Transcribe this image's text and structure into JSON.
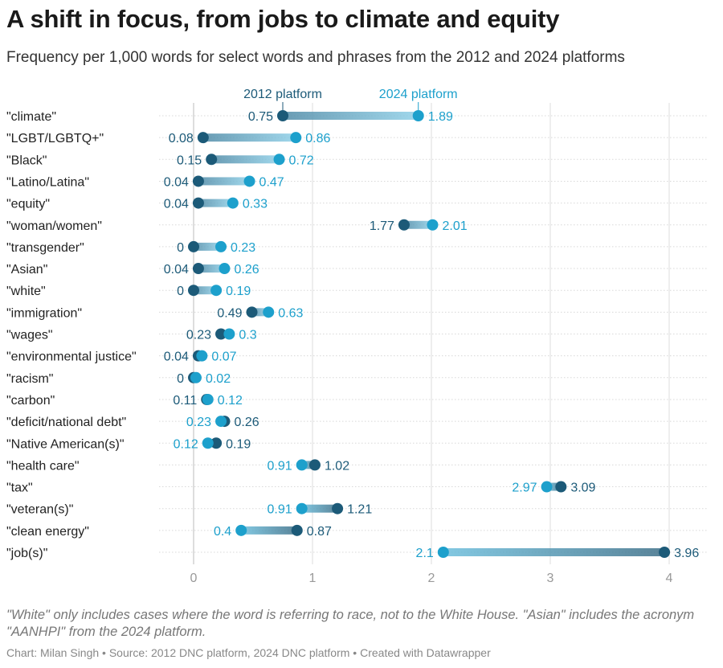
{
  "title": "A shift in focus, from jobs to climate and equity",
  "subtitle": "Frequency per 1,000 words for select words and phrases from the 2012 and 2024 platforms",
  "note": "\"White\" only includes cases where the word is referring to race, not to the White House. \"Asian\" includes the acronym \"AANHPI\" from the 2024 platform.",
  "credit": "Chart: Milan Singh • Source: 2012 DNC platform, 2024 DNC platform • Created with Datawrapper",
  "colors": {
    "y2012": "#1c5a78",
    "y2024": "#1da0cc",
    "grid": "#dddddd",
    "axis": "#bbbbbb"
  },
  "chart_data": {
    "type": "dot",
    "xlim": [
      0,
      4
    ],
    "xticks": [
      "0",
      "1",
      "2",
      "3",
      "4"
    ],
    "series_names": [
      "2012 platform",
      "2024 platform"
    ],
    "rows": [
      {
        "label": "\"climate\"",
        "v2012": 0.75,
        "v2024": 1.89,
        "t2012": "0.75",
        "t2024": "1.89"
      },
      {
        "label": "\"LGBT/LGBTQ+\"",
        "v2012": 0.08,
        "v2024": 0.86,
        "t2012": "0.08",
        "t2024": "0.86"
      },
      {
        "label": "\"Black\"",
        "v2012": 0.15,
        "v2024": 0.72,
        "t2012": "0.15",
        "t2024": "0.72"
      },
      {
        "label": "\"Latino/Latina\"",
        "v2012": 0.04,
        "v2024": 0.47,
        "t2012": "0.04",
        "t2024": "0.47"
      },
      {
        "label": "\"equity\"",
        "v2012": 0.04,
        "v2024": 0.33,
        "t2012": "0.04",
        "t2024": "0.33"
      },
      {
        "label": "\"woman/women\"",
        "v2012": 1.77,
        "v2024": 2.01,
        "t2012": "1.77",
        "t2024": "2.01"
      },
      {
        "label": "\"transgender\"",
        "v2012": 0,
        "v2024": 0.23,
        "t2012": "0",
        "t2024": "0.23"
      },
      {
        "label": "\"Asian\"",
        "v2012": 0.04,
        "v2024": 0.26,
        "t2012": "0.04",
        "t2024": "0.26"
      },
      {
        "label": "\"white\"",
        "v2012": 0,
        "v2024": 0.19,
        "t2012": "0",
        "t2024": "0.19"
      },
      {
        "label": "\"immigration\"",
        "v2012": 0.49,
        "v2024": 0.63,
        "t2012": "0.49",
        "t2024": "0.63"
      },
      {
        "label": "\"wages\"",
        "v2012": 0.23,
        "v2024": 0.3,
        "t2012": "0.23",
        "t2024": "0.3"
      },
      {
        "label": "\"environmental justice\"",
        "v2012": 0.04,
        "v2024": 0.07,
        "t2012": "0.04",
        "t2024": "0.07"
      },
      {
        "label": "\"racism\"",
        "v2012": 0,
        "v2024": 0.02,
        "t2012": "0",
        "t2024": "0.02"
      },
      {
        "label": "\"carbon\"",
        "v2012": 0.11,
        "v2024": 0.12,
        "t2012": "0.11",
        "t2024": "0.12"
      },
      {
        "label": "\"deficit/national debt\"",
        "v2012": 0.26,
        "v2024": 0.23,
        "t2012": "0.26",
        "t2024": "0.23"
      },
      {
        "label": "\"Native American(s)\"",
        "v2012": 0.19,
        "v2024": 0.12,
        "t2012": "0.19",
        "t2024": "0.12"
      },
      {
        "label": "\"health care\"",
        "v2012": 1.02,
        "v2024": 0.91,
        "t2012": "1.02",
        "t2024": "0.91"
      },
      {
        "label": "\"tax\"",
        "v2012": 3.09,
        "v2024": 2.97,
        "t2012": "3.09",
        "t2024": "2.97"
      },
      {
        "label": "\"veteran(s)\"",
        "v2012": 1.21,
        "v2024": 0.91,
        "t2012": "1.21",
        "t2024": "0.91"
      },
      {
        "label": "\"clean energy\"",
        "v2012": 0.87,
        "v2024": 0.4,
        "t2012": "0.87",
        "t2024": "0.4"
      },
      {
        "label": "\"job(s)\"",
        "v2012": 3.96,
        "v2024": 2.1,
        "t2012": "3.96",
        "t2024": "2.1"
      }
    ]
  }
}
